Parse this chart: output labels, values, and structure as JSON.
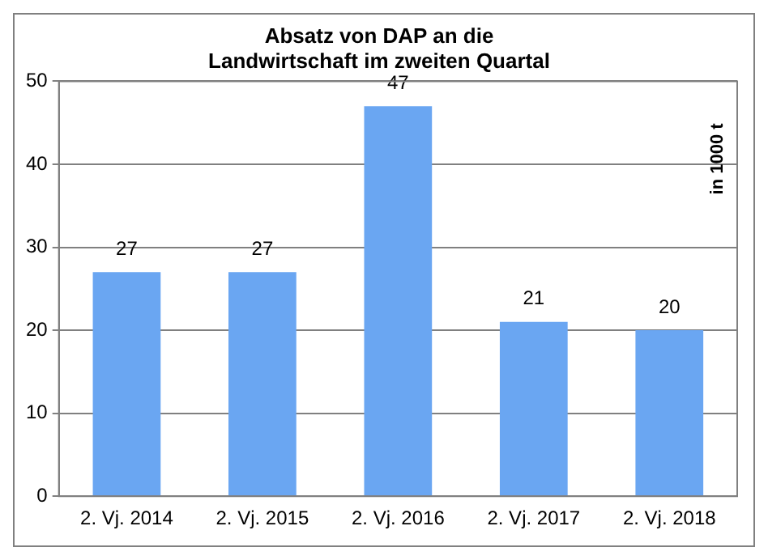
{
  "chart_data": {
    "type": "bar",
    "title": "Absatz von DAP an die\nLandwirtschaft im zweiten Quartal",
    "ylabel": "in 1000 t",
    "categories": [
      "2. Vj. 2014",
      "2. Vj. 2015",
      "2. Vj. 2016",
      "2. Vj. 2017",
      "2. Vj. 2018"
    ],
    "values": [
      27,
      27,
      47,
      21,
      20
    ],
    "color": "#6aa6f2",
    "ylim": [
      0,
      50
    ],
    "yticks": [
      0,
      10,
      20,
      30,
      40,
      50
    ],
    "grid": "y",
    "data_labels": true,
    "legend": false
  }
}
